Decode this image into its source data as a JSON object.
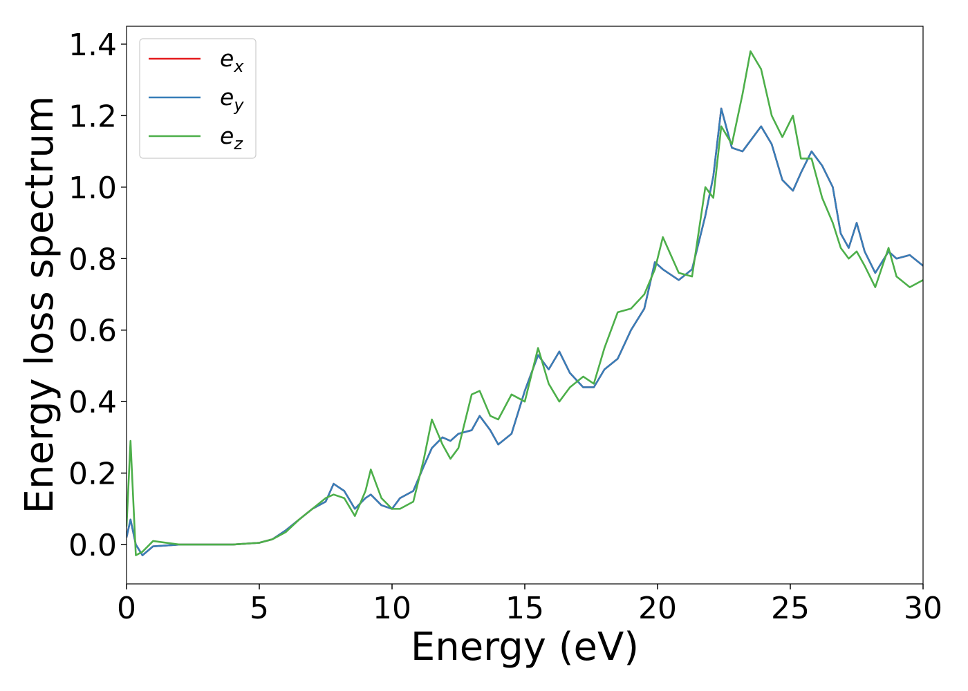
{
  "chart_data": {
    "type": "line",
    "xlabel": "Energy (eV)",
    "ylabel": "Energy loss spectrum",
    "x": [
      0,
      0.15,
      0.35,
      0.6,
      1,
      2,
      3,
      4,
      5,
      5.5,
      6,
      6.5,
      7,
      7.5,
      7.8,
      8.2,
      8.6,
      9,
      9.2,
      9.6,
      10,
      10.3,
      10.8,
      11.2,
      11.5,
      11.9,
      12.2,
      12.5,
      13,
      13.3,
      13.7,
      14,
      14.5,
      15,
      15.5,
      15.9,
      16.3,
      16.7,
      17.2,
      17.6,
      18,
      18.5,
      19,
      19.5,
      19.9,
      20.2,
      20.8,
      21.3,
      21.8,
      22.1,
      22.4,
      22.8,
      23.2,
      23.5,
      23.9,
      24.3,
      24.7,
      25.1,
      25.4,
      25.8,
      26.2,
      26.6,
      26.9,
      27.2,
      27.5,
      27.8,
      28.2,
      28.7,
      29,
      29.5,
      30
    ],
    "series": [
      {
        "name": "ex",
        "color": "#e41a1c",
        "values": [
          0.02,
          0.07,
          0.0,
          -0.03,
          -0.005,
          0,
          0,
          0,
          0.005,
          0.015,
          0.04,
          0.07,
          0.1,
          0.12,
          0.17,
          0.15,
          0.1,
          0.13,
          0.14,
          0.11,
          0.1,
          0.13,
          0.15,
          0.22,
          0.27,
          0.3,
          0.29,
          0.31,
          0.32,
          0.36,
          0.32,
          0.28,
          0.31,
          0.43,
          0.53,
          0.49,
          0.54,
          0.48,
          0.44,
          0.44,
          0.49,
          0.52,
          0.6,
          0.66,
          0.79,
          0.77,
          0.74,
          0.77,
          0.92,
          1.03,
          1.22,
          1.11,
          1.1,
          1.13,
          1.17,
          1.12,
          1.02,
          0.99,
          1.04,
          1.1,
          1.06,
          1.0,
          0.87,
          0.83,
          0.9,
          0.82,
          0.76,
          0.82,
          0.8,
          0.81,
          0.78
        ]
      },
      {
        "name": "ey",
        "color": "#377eb8",
        "values": [
          0.02,
          0.07,
          0.0,
          -0.03,
          -0.005,
          0,
          0,
          0,
          0.005,
          0.015,
          0.04,
          0.07,
          0.1,
          0.12,
          0.17,
          0.15,
          0.1,
          0.13,
          0.14,
          0.11,
          0.1,
          0.13,
          0.15,
          0.22,
          0.27,
          0.3,
          0.29,
          0.31,
          0.32,
          0.36,
          0.32,
          0.28,
          0.31,
          0.43,
          0.53,
          0.49,
          0.54,
          0.48,
          0.44,
          0.44,
          0.49,
          0.52,
          0.6,
          0.66,
          0.79,
          0.77,
          0.74,
          0.77,
          0.92,
          1.03,
          1.22,
          1.11,
          1.1,
          1.13,
          1.17,
          1.12,
          1.02,
          0.99,
          1.04,
          1.1,
          1.06,
          1.0,
          0.87,
          0.83,
          0.9,
          0.82,
          0.76,
          0.82,
          0.8,
          0.81,
          0.78
        ]
      },
      {
        "name": "ez",
        "color": "#4daf4a",
        "values": [
          0.05,
          0.29,
          -0.03,
          -0.02,
          0.01,
          0,
          0,
          0,
          0.005,
          0.015,
          0.035,
          0.07,
          0.1,
          0.13,
          0.14,
          0.13,
          0.08,
          0.15,
          0.21,
          0.13,
          0.1,
          0.1,
          0.12,
          0.24,
          0.35,
          0.28,
          0.24,
          0.27,
          0.42,
          0.43,
          0.36,
          0.35,
          0.42,
          0.4,
          0.55,
          0.45,
          0.4,
          0.44,
          0.47,
          0.45,
          0.55,
          0.65,
          0.66,
          0.7,
          0.77,
          0.86,
          0.76,
          0.75,
          1.0,
          0.97,
          1.17,
          1.12,
          1.26,
          1.38,
          1.33,
          1.2,
          1.14,
          1.2,
          1.08,
          1.08,
          0.97,
          0.9,
          0.83,
          0.8,
          0.82,
          0.78,
          0.72,
          0.83,
          0.75,
          0.72,
          0.74
        ]
      }
    ],
    "xlim": [
      0,
      30
    ],
    "xticks": [
      0,
      5,
      10,
      15,
      20,
      25,
      30
    ],
    "ylim": [
      -0.11,
      1.45
    ],
    "yticks": [
      {
        "value": 0,
        "label": "0.0"
      },
      {
        "value": 0.2,
        "label": "0.2"
      },
      {
        "value": 0.4,
        "label": "0.4"
      },
      {
        "value": 0.6,
        "label": "0.6"
      },
      {
        "value": 0.8,
        "label": "0.8"
      },
      {
        "value": 1,
        "label": "1.0"
      },
      {
        "value": 1.2,
        "label": "1.2"
      },
      {
        "value": 1.4,
        "label": "1.4"
      }
    ],
    "legend": "upper left",
    "grid": false
  }
}
